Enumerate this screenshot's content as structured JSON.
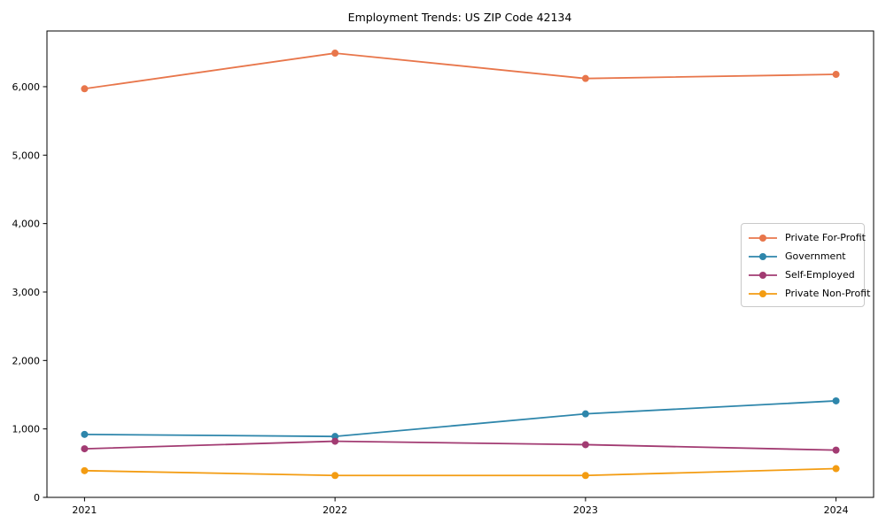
{
  "chart_data": {
    "type": "line",
    "title": "Employment Trends: US ZIP Code 42134",
    "x": [
      "2021",
      "2022",
      "2023",
      "2024"
    ],
    "series": [
      {
        "name": "Private For-Profit",
        "color": "#e8764b",
        "values": [
          5970,
          6490,
          6120,
          6180
        ]
      },
      {
        "name": "Government",
        "color": "#2e86ab",
        "values": [
          920,
          890,
          1220,
          1410
        ]
      },
      {
        "name": "Self-Employed",
        "color": "#a23b72",
        "values": [
          710,
          820,
          770,
          690
        ]
      },
      {
        "name": "Private Non-Profit",
        "color": "#f39c12",
        "values": [
          390,
          320,
          320,
          420
        ]
      }
    ],
    "xlabel": "",
    "ylabel": "",
    "ylim": [
      0,
      6814
    ],
    "yticks": [
      0,
      1000,
      2000,
      3000,
      4000,
      5000,
      6000
    ],
    "ytick_labels": [
      "0",
      "1,000",
      "2,000",
      "3,000",
      "4,000",
      "5,000",
      "6,000"
    ],
    "grid": false,
    "legend_position": "center right",
    "marker": "circle",
    "axis_color": "#000000"
  }
}
